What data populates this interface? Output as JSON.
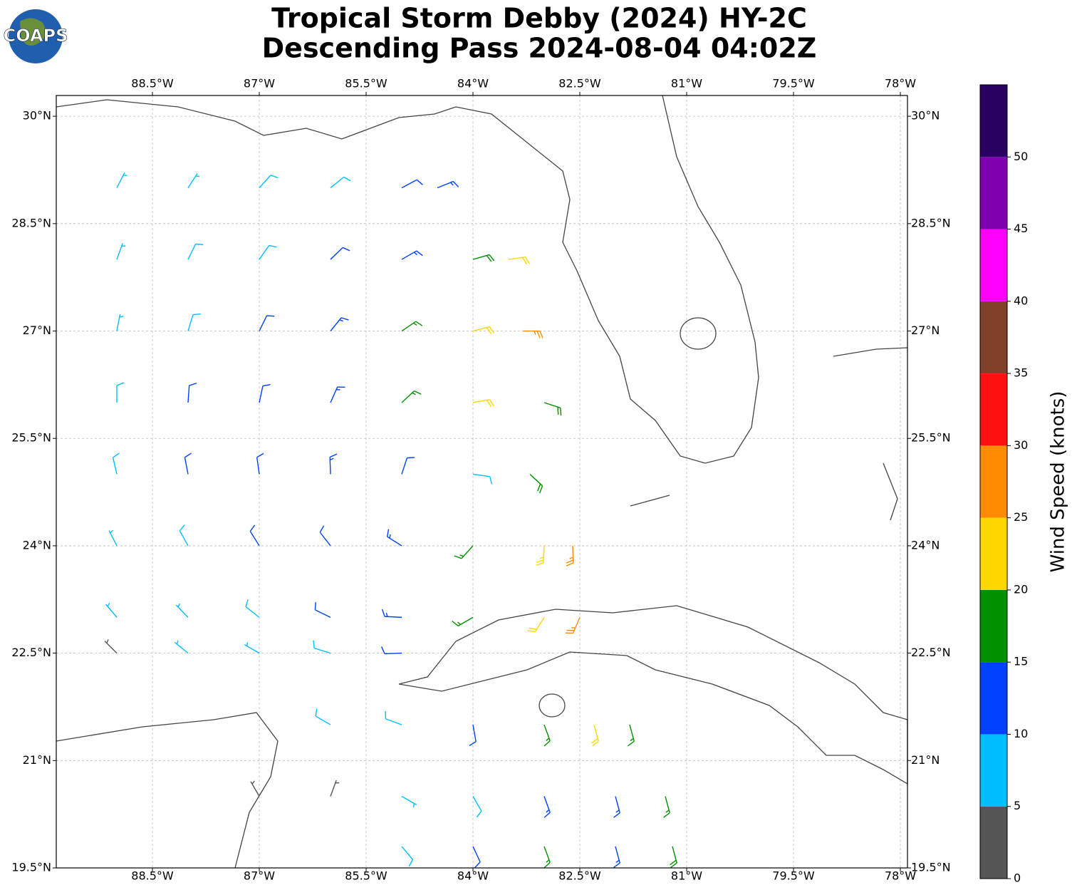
{
  "logo": "COAPS",
  "title": [
    "Tropical Storm Debby (2024) HY-2C",
    "Descending Pass 2024-08-04 04:02Z"
  ],
  "map": {
    "xlim": [
      -89.85,
      -77.9
    ],
    "ylim": [
      19.5,
      30.29
    ],
    "xticks": [
      {
        "value": -88.5,
        "label": "88.5°W"
      },
      {
        "value": -87,
        "label": "87°W"
      },
      {
        "value": -85.5,
        "label": "85.5°W"
      },
      {
        "value": -84,
        "label": "84°W"
      },
      {
        "value": -82.5,
        "label": "82.5°W"
      },
      {
        "value": -81,
        "label": "81°W"
      },
      {
        "value": -79.5,
        "label": "79.5°W"
      },
      {
        "value": -78,
        "label": "78°W"
      }
    ],
    "yticks": [
      {
        "value": 19.5,
        "label": "19.5°N"
      },
      {
        "value": 21,
        "label": "21°N"
      },
      {
        "value": 22.5,
        "label": "22.5°N"
      },
      {
        "value": 24,
        "label": "24°N"
      },
      {
        "value": 25.5,
        "label": "25.5°N"
      },
      {
        "value": 27,
        "label": "27°N"
      },
      {
        "value": 28.5,
        "label": "28.5°N"
      },
      {
        "value": 30,
        "label": "30°N"
      }
    ],
    "grid": true,
    "barbs": [
      {
        "lat": 29,
        "lon": -89,
        "dir": 27,
        "speed": 6
      },
      {
        "lat": 29,
        "lon": -88,
        "dir": 33,
        "speed": 7
      },
      {
        "lat": 29,
        "lon": -87,
        "dir": 42,
        "speed": 8
      },
      {
        "lat": 29,
        "lon": -86,
        "dir": 51,
        "speed": 9
      },
      {
        "lat": 29,
        "lon": -85,
        "dir": 62,
        "speed": 12
      },
      {
        "lat": 29,
        "lon": -84.5,
        "dir": 68,
        "speed": 14
      },
      {
        "lat": 28,
        "lon": -89,
        "dir": 20,
        "speed": 7
      },
      {
        "lat": 28,
        "lon": -88,
        "dir": 26,
        "speed": 8
      },
      {
        "lat": 28,
        "lon": -87,
        "dir": 35,
        "speed": 9
      },
      {
        "lat": 28,
        "lon": -86,
        "dir": 46,
        "speed": 11
      },
      {
        "lat": 28,
        "lon": -85,
        "dir": 60,
        "speed": 13
      },
      {
        "lat": 28,
        "lon": -84,
        "dir": 74,
        "speed": 18
      },
      {
        "lat": 28,
        "lon": -83.5,
        "dir": 82,
        "speed": 22
      },
      {
        "lat": 27,
        "lon": -89,
        "dir": 11,
        "speed": 7
      },
      {
        "lat": 27,
        "lon": -88,
        "dir": 17,
        "speed": 9
      },
      {
        "lat": 27,
        "lon": -87,
        "dir": 26,
        "speed": 11
      },
      {
        "lat": 27,
        "lon": -86,
        "dir": 39,
        "speed": 13
      },
      {
        "lat": 27,
        "lon": -85,
        "dir": 56,
        "speed": 16
      },
      {
        "lat": 27,
        "lon": -84,
        "dir": 76,
        "speed": 21
      },
      {
        "lat": 27,
        "lon": -83.3,
        "dir": 90,
        "speed": 26
      },
      {
        "lat": 26,
        "lon": -89,
        "dir": 0,
        "speed": 8
      },
      {
        "lat": 26,
        "lon": -88,
        "dir": 4,
        "speed": 10
      },
      {
        "lat": 26,
        "lon": -87,
        "dir": 12,
        "speed": 12
      },
      {
        "lat": 26,
        "lon": -86,
        "dir": 24,
        "speed": 13
      },
      {
        "lat": 26,
        "lon": -85,
        "dir": 47,
        "speed": 17
      },
      {
        "lat": 26,
        "lon": -84,
        "dir": 80,
        "speed": 21
      },
      {
        "lat": 26,
        "lon": -83,
        "dir": 108,
        "speed": 19
      },
      {
        "lat": 25,
        "lon": -89,
        "dir": 347,
        "speed": 8
      },
      {
        "lat": 25,
        "lon": -88,
        "dir": 349,
        "speed": 10
      },
      {
        "lat": 25,
        "lon": -87,
        "dir": 352,
        "speed": 12
      },
      {
        "lat": 25,
        "lon": -86,
        "dir": 358,
        "speed": 13
      },
      {
        "lat": 25,
        "lon": -85,
        "dir": 18,
        "speed": 12
      },
      {
        "lat": 25,
        "lon": -84,
        "dir": 98,
        "speed": 9
      },
      {
        "lat": 25,
        "lon": -83.2,
        "dir": 133,
        "speed": 18
      },
      {
        "lat": 24,
        "lon": -89,
        "dir": 333,
        "speed": 7
      },
      {
        "lat": 24,
        "lon": -88,
        "dir": 331,
        "speed": 9
      },
      {
        "lat": 24,
        "lon": -87,
        "dir": 328,
        "speed": 11
      },
      {
        "lat": 24,
        "lon": -86,
        "dir": 322,
        "speed": 12
      },
      {
        "lat": 24,
        "lon": -85,
        "dir": 302,
        "speed": 13
      },
      {
        "lat": 24,
        "lon": -84,
        "dir": 222,
        "speed": 15
      },
      {
        "lat": 24,
        "lon": -83,
        "dir": 183,
        "speed": 23
      },
      {
        "lat": 24,
        "lon": -82.6,
        "dir": 178,
        "speed": 27
      },
      {
        "lat": 23,
        "lon": -89,
        "dir": 320,
        "speed": 6
      },
      {
        "lat": 23,
        "lon": -88,
        "dir": 316,
        "speed": 7
      },
      {
        "lat": 23,
        "lon": -87,
        "dir": 308,
        "speed": 8
      },
      {
        "lat": 23,
        "lon": -86,
        "dir": 296,
        "speed": 11
      },
      {
        "lat": 23,
        "lon": -85,
        "dir": 273,
        "speed": 13
      },
      {
        "lat": 23,
        "lon": -84,
        "dir": 240,
        "speed": 17
      },
      {
        "lat": 23,
        "lon": -83,
        "dir": 212,
        "speed": 22
      },
      {
        "lat": 23,
        "lon": -82.5,
        "dir": 203,
        "speed": 27
      },
      {
        "lat": 22.5,
        "lon": -89,
        "dir": 315,
        "speed": 4
      },
      {
        "lat": 22.5,
        "lon": -88,
        "dir": 309,
        "speed": 5
      },
      {
        "lat": 22.5,
        "lon": -87,
        "dir": 300,
        "speed": 6
      },
      {
        "lat": 22.5,
        "lon": -86,
        "dir": 287,
        "speed": 9
      },
      {
        "lat": 22.5,
        "lon": -85,
        "dir": 268,
        "speed": 12
      },
      {
        "lat": 21.5,
        "lon": -86,
        "dir": 300,
        "speed": 8
      },
      {
        "lat": 21.5,
        "lon": -85,
        "dir": 290,
        "speed": 9
      },
      {
        "lat": 21.5,
        "lon": -84,
        "dir": 170,
        "speed": 12
      },
      {
        "lat": 21.5,
        "lon": -83,
        "dir": 160,
        "speed": 15
      },
      {
        "lat": 21.5,
        "lon": -82.3,
        "dir": 165,
        "speed": 22
      },
      {
        "lat": 21.5,
        "lon": -81.8,
        "dir": 165,
        "speed": 17
      },
      {
        "lat": 20.5,
        "lon": -87,
        "dir": 330,
        "speed": 4
      },
      {
        "lat": 20.5,
        "lon": -86,
        "dir": 20,
        "speed": 4
      },
      {
        "lat": 20.5,
        "lon": -85,
        "dir": 120,
        "speed": 7
      },
      {
        "lat": 20.5,
        "lon": -84,
        "dir": 150,
        "speed": 9
      },
      {
        "lat": 20.5,
        "lon": -83,
        "dir": 160,
        "speed": 13
      },
      {
        "lat": 20.5,
        "lon": -82,
        "dir": 165,
        "speed": 14
      },
      {
        "lat": 20.5,
        "lon": -81.3,
        "dir": 165,
        "speed": 17
      },
      {
        "lat": 19.8,
        "lon": -85,
        "dir": 140,
        "speed": 8
      },
      {
        "lat": 19.8,
        "lon": -84,
        "dir": 155,
        "speed": 11
      },
      {
        "lat": 19.8,
        "lon": -83,
        "dir": 160,
        "speed": 16
      },
      {
        "lat": 19.8,
        "lon": -82,
        "dir": 165,
        "speed": 13
      },
      {
        "lat": 19.8,
        "lon": -81.2,
        "dir": 165,
        "speed": 18
      }
    ]
  },
  "colorbar": {
    "label": "Wind Speed (knots)",
    "bounds": [
      0,
      5,
      10,
      15,
      20,
      25,
      30,
      35,
      40,
      45,
      50,
      55
    ],
    "colors": [
      "#555555",
      "#00bfff",
      "#0040ff",
      "#009000",
      "#ffd700",
      "#ff8c00",
      "#ff1010",
      "#80402a",
      "#ff00ff",
      "#8000b0",
      "#2a0060"
    ],
    "ticks": [
      0,
      5,
      10,
      15,
      20,
      25,
      30,
      35,
      40,
      45,
      50
    ]
  }
}
